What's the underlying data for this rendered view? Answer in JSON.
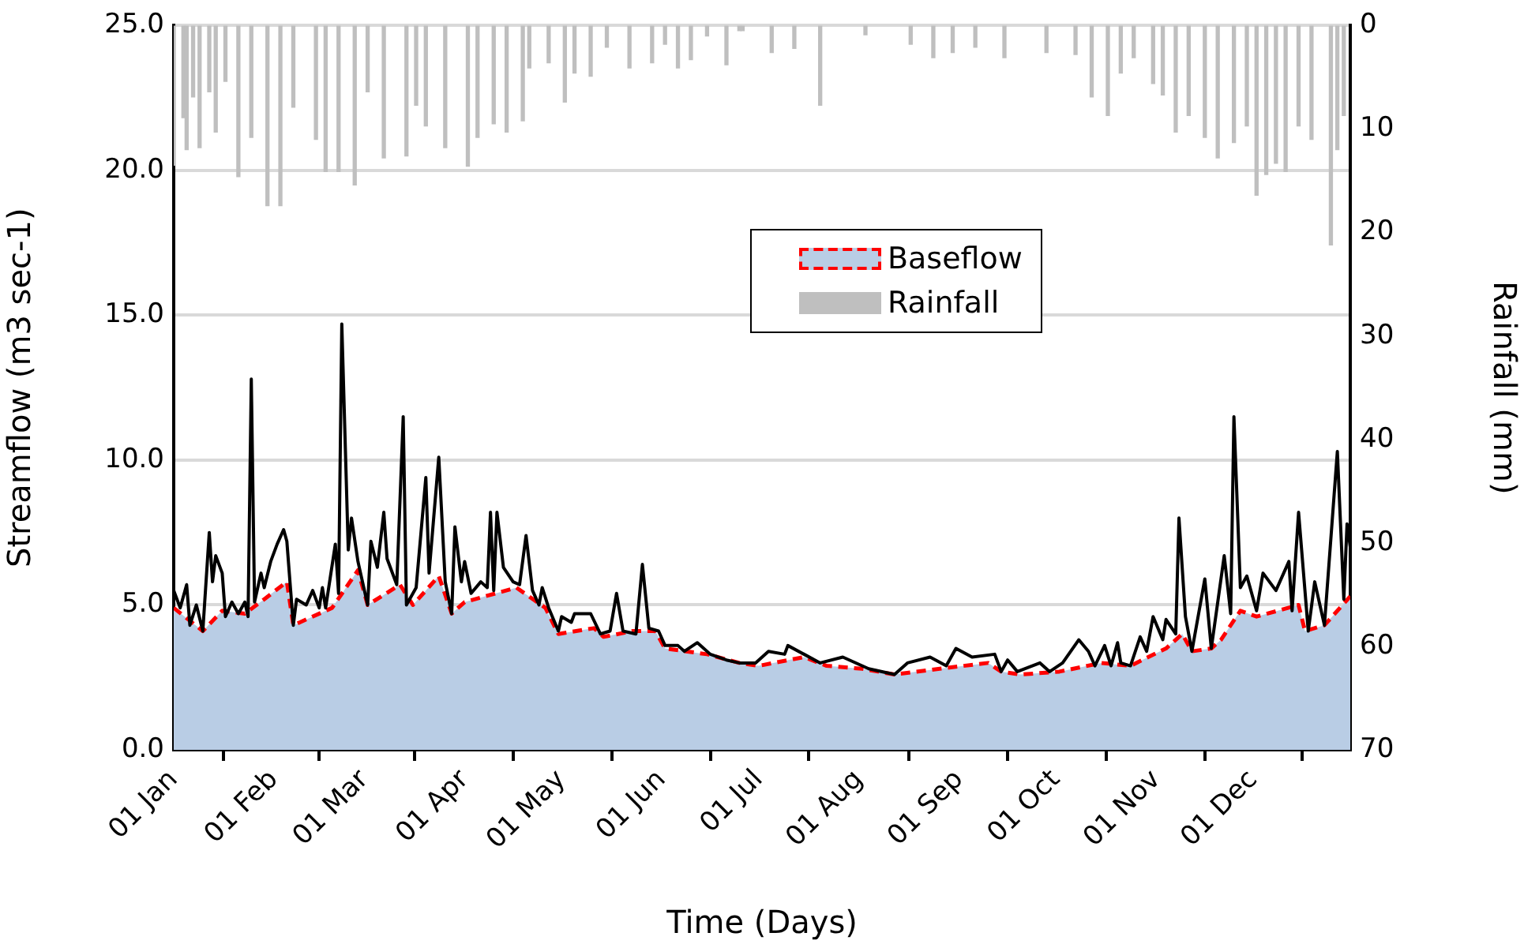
{
  "chart_data": {
    "type": "line",
    "xlabel": "Time (Days)",
    "ylabel": "Streamflow (m3 sec-1)",
    "y2label": "Rainfall (mm)",
    "xlim": [
      "--01-01",
      "--12-31"
    ],
    "xticks": [
      {
        "value": "--01-01",
        "label": "01 Jan"
      },
      {
        "value": "--02-01",
        "label": "01 Feb"
      },
      {
        "value": "--03-01",
        "label": "01 Mar"
      },
      {
        "value": "--04-01",
        "label": "01 Apr"
      },
      {
        "value": "--05-01",
        "label": "01 May"
      },
      {
        "value": "--06-01",
        "label": "01 Jun"
      },
      {
        "value": "--07-01",
        "label": "01 Jul"
      },
      {
        "value": "--08-01",
        "label": "01 Aug"
      },
      {
        "value": "--09-01",
        "label": "01 Sep"
      },
      {
        "value": "--10-01",
        "label": "01 Oct"
      },
      {
        "value": "--11-01",
        "label": "01 Nov"
      },
      {
        "value": "--12-01",
        "label": "01 Dec"
      }
    ],
    "ylim": [
      0,
      25
    ],
    "yticks": [
      {
        "value": 0,
        "label": "0.0"
      },
      {
        "value": 5,
        "label": "5.0"
      },
      {
        "value": 10,
        "label": "10.0"
      },
      {
        "value": 15,
        "label": "15.0"
      },
      {
        "value": 20,
        "label": "20.0"
      },
      {
        "value": 25,
        "label": "25.0"
      }
    ],
    "y2lim": [
      70,
      0
    ],
    "y2ticks": [
      0,
      10,
      20,
      30,
      40,
      50,
      60,
      70
    ],
    "grid": "y",
    "legend": "top right",
    "marker": "none",
    "series": [
      {
        "color": "#000000",
        "line_style": "solid",
        "x": [
          "--01-01",
          "--01-03",
          "--01-05",
          "--01-06",
          "--01-08",
          "--01-10",
          "--01-12",
          "--01-13",
          "--01-14",
          "--01-16",
          "--01-17",
          "--01-19",
          "--01-21",
          "--01-23",
          "--01-24",
          "--01-25",
          "--01-26",
          "--01-28",
          "--01-29",
          "--01-31",
          "--02-02",
          "--02-04",
          "--02-05",
          "--02-07",
          "--02-08",
          "--02-11",
          "--02-13",
          "--02-15",
          "--02-16",
          "--02-17",
          "--02-20",
          "--02-21",
          "--02-22",
          "--02-24",
          "--02-25",
          "--02-27",
          "--03-02",
          "--03-03",
          "--03-05",
          "--03-07",
          "--03-08",
          "--03-11",
          "--03-13",
          "--03-14",
          "--03-17",
          "--03-20",
          "--03-21",
          "--03-24",
          "--03-26",
          "--03-28",
          "--03-29",
          "--03-31",
          "--04-01",
          "--04-03",
          "--04-06",
          "--04-08",
          "--04-09",
          "--04-10",
          "--04-11",
          "--04-13",
          "--04-16",
          "--04-18",
          "--04-20",
          "--04-22",
          "--04-24",
          "--04-25",
          "--04-27",
          "--04-30",
          "--05-01",
          "--05-04",
          "--05-05",
          "--05-10",
          "--05-13",
          "--05-16",
          "--05-18",
          "--05-20",
          "--05-24",
          "--05-26",
          "--05-28",
          "--05-31",
          "--06-02",
          "--06-06",
          "--06-08",
          "--06-12",
          "--06-16",
          "--06-21",
          "--06-25",
          "--06-30",
          "--07-04",
          "--07-09",
          "--07-10",
          "--07-15",
          "--07-20",
          "--07-27",
          "--08-04",
          "--08-12",
          "--08-16",
          "--08-23",
          "--08-28",
          "--08-31",
          "--09-05",
          "--09-12",
          "--09-14",
          "--09-16",
          "--09-19",
          "--09-26",
          "--09-29",
          "--10-03",
          "--10-08",
          "--10-11",
          "--10-13",
          "--10-16",
          "--10-18",
          "--10-20",
          "--10-21",
          "--10-24",
          "--10-27",
          "--10-29",
          "--10-31",
          "--11-03",
          "--11-04",
          "--11-07",
          "--11-08",
          "--11-10",
          "--11-12",
          "--11-16",
          "--11-18",
          "--11-22",
          "--11-24",
          "--11-25",
          "--11-27",
          "--11-29",
          "--12-02",
          "--12-04",
          "--12-08",
          "--12-12",
          "--12-13",
          "--12-15",
          "--12-18",
          "--12-20",
          "--12-23",
          "--12-27",
          "--12-29",
          "--12-30",
          "--12-31"
        ],
        "values": [
          5.5,
          4.9,
          5.7,
          4.3,
          5.0,
          4.1,
          7.5,
          5.8,
          6.7,
          6.1,
          4.6,
          5.1,
          4.7,
          5.1,
          4.6,
          12.8,
          5.1,
          6.1,
          5.6,
          6.5,
          7.1,
          7.6,
          7.2,
          4.3,
          5.2,
          5.0,
          5.5,
          4.9,
          5.6,
          4.9,
          7.1,
          5.4,
          14.7,
          6.9,
          8.0,
          6.5,
          5.0,
          7.2,
          6.3,
          8.2,
          6.6,
          5.7,
          11.5,
          5.0,
          5.6,
          9.4,
          6.1,
          10.1,
          5.8,
          4.7,
          7.7,
          5.8,
          6.5,
          5.4,
          5.8,
          5.6,
          8.2,
          5.5,
          8.2,
          6.3,
          5.8,
          5.7,
          7.4,
          5.5,
          5.0,
          5.6,
          4.9,
          4.1,
          4.6,
          4.4,
          4.7,
          4.7,
          4.0,
          4.1,
          5.4,
          4.1,
          4.0,
          6.4,
          4.2,
          4.1,
          3.6,
          3.6,
          3.4,
          3.7,
          3.3,
          3.1,
          3.0,
          3.0,
          3.4,
          3.3,
          3.6,
          3.3,
          3.0,
          3.2,
          2.8,
          2.6,
          3.0,
          3.2,
          2.9,
          3.5,
          3.2,
          3.3,
          2.7,
          3.1,
          2.7,
          3.0,
          2.7,
          3.0,
          3.8,
          3.4,
          2.9,
          3.6,
          2.9,
          3.7,
          3.0,
          2.9,
          3.9,
          3.4,
          4.6,
          3.8,
          4.5,
          4.0,
          8.0,
          4.6,
          3.4,
          5.9,
          3.5,
          6.7,
          4.7,
          11.5,
          5.6,
          6.0,
          4.8,
          6.1,
          5.5,
          6.5,
          4.8,
          8.2,
          4.1,
          5.8,
          4.3,
          10.3,
          5.2,
          7.8,
          7.0
        ]
      },
      {
        "type": "area",
        "name": "Baseflow",
        "color": "#b9cde5",
        "x": [
          "--01-01",
          "--01-10",
          "--01-16",
          "--01-23",
          "--01-29",
          "--02-05",
          "--02-07",
          "--02-19",
          "--02-27",
          "--03-02",
          "--03-12",
          "--03-16",
          "--03-24",
          "--03-28",
          "--04-01",
          "--04-17",
          "--04-26",
          "--04-30",
          "--05-11",
          "--05-14",
          "--05-23",
          "--05-30",
          "--06-02",
          "--06-15",
          "--06-25",
          "--07-01",
          "--07-15",
          "--07-22",
          "--08-02",
          "--08-12",
          "--08-26",
          "--09-10",
          "--09-14",
          "--09-20",
          "--10-02",
          "--10-15",
          "--10-24",
          "--11-04",
          "--11-09",
          "--11-12",
          "--11-18",
          "--11-21",
          "--11-27",
          "--12-02",
          "--12-15",
          "--12-17",
          "--12-23",
          "--12-31"
        ],
        "values": [
          4.9,
          4.1,
          4.8,
          4.7,
          5.2,
          5.8,
          4.3,
          4.9,
          6.2,
          5.0,
          5.7,
          5.0,
          6.0,
          4.7,
          5.1,
          5.6,
          4.9,
          4.0,
          4.2,
          3.9,
          4.1,
          4.1,
          3.5,
          3.3,
          3.0,
          2.9,
          3.2,
          2.9,
          2.8,
          2.6,
          2.8,
          3.0,
          2.7,
          2.6,
          2.7,
          3.0,
          2.9,
          3.5,
          4.0,
          3.4,
          3.5,
          3.8,
          4.8,
          4.6,
          5.0,
          4.1,
          4.3,
          5.3
        ]
      },
      {
        "color": "#ff0000",
        "line_style": "dashed",
        "x": [
          "--01-01",
          "--01-10",
          "--01-16",
          "--01-23",
          "--01-29",
          "--02-05",
          "--02-07",
          "--02-19",
          "--02-27",
          "--03-02",
          "--03-12",
          "--03-16",
          "--03-24",
          "--03-28",
          "--04-01",
          "--04-17",
          "--04-26",
          "--04-30",
          "--05-11",
          "--05-14",
          "--05-23",
          "--05-30",
          "--06-02",
          "--06-15",
          "--06-25",
          "--07-01",
          "--07-15",
          "--07-22",
          "--08-02",
          "--08-12",
          "--08-26",
          "--09-10",
          "--09-14",
          "--09-20",
          "--10-02",
          "--10-15",
          "--10-24",
          "--11-04",
          "--11-09",
          "--11-12",
          "--11-18",
          "--11-21",
          "--11-27",
          "--12-02",
          "--12-15",
          "--12-17",
          "--12-23",
          "--12-31"
        ],
        "values": [
          4.9,
          4.1,
          4.8,
          4.7,
          5.2,
          5.8,
          4.3,
          4.9,
          6.2,
          5.0,
          5.7,
          5.0,
          6.0,
          4.7,
          5.1,
          5.6,
          4.9,
          4.0,
          4.2,
          3.9,
          4.1,
          4.1,
          3.5,
          3.3,
          3.0,
          2.9,
          3.2,
          2.9,
          2.8,
          2.6,
          2.8,
          3.0,
          2.7,
          2.6,
          2.7,
          3.0,
          2.9,
          3.5,
          4.0,
          3.4,
          3.5,
          3.8,
          4.8,
          4.6,
          5.0,
          4.1,
          4.3,
          5.3
        ]
      },
      {
        "type": "bar",
        "name": "Rainfall",
        "color": "#bfbfbf",
        "axis": "y2",
        "x": [
          "--01-01",
          "--01-04",
          "--01-05",
          "--01-07",
          "--01-09",
          "--01-12",
          "--01-14",
          "--01-17",
          "--01-21",
          "--01-25",
          "--01-30",
          "--02-03",
          "--02-07",
          "--02-14",
          "--02-17",
          "--02-21",
          "--02-26",
          "--03-02",
          "--03-07",
          "--03-14",
          "--03-17",
          "--03-20",
          "--03-26",
          "--04-02",
          "--04-05",
          "--04-10",
          "--04-14",
          "--04-19",
          "--04-21",
          "--04-27",
          "--05-02",
          "--05-05",
          "--05-10",
          "--05-15",
          "--05-22",
          "--05-29",
          "--06-02",
          "--06-06",
          "--06-10",
          "--06-15",
          "--06-21",
          "--06-25",
          "--06-26",
          "--07-05",
          "--07-12",
          "--07-20",
          "--08-03",
          "--08-17",
          "--08-24",
          "--08-30",
          "--09-06",
          "--09-15",
          "--09-28",
          "--10-07",
          "--10-12",
          "--10-17",
          "--10-21",
          "--10-25",
          "--10-31",
          "--11-03",
          "--11-07",
          "--11-11",
          "--11-16",
          "--11-20",
          "--11-25",
          "--11-29",
          "--12-02",
          "--12-05",
          "--12-08",
          "--12-11",
          "--12-15",
          "--12-19",
          "--12-25",
          "--12-27",
          "--12-29"
        ],
        "values": [
          13.5,
          8.9,
          12.0,
          6.9,
          11.8,
          6.4,
          10.3,
          5.4,
          14.6,
          10.8,
          17.4,
          17.4,
          7.9,
          11.0,
          14.1,
          14.1,
          15.4,
          6.4,
          12.8,
          12.6,
          7.7,
          9.7,
          11.8,
          13.6,
          10.8,
          9.5,
          10.3,
          9.2,
          4.1,
          3.6,
          7.4,
          4.6,
          4.9,
          2.1,
          4.1,
          3.6,
          1.8,
          4.1,
          3.3,
          1.0,
          3.8,
          0.5,
          0.5,
          2.6,
          2.2,
          7.7,
          0.9,
          1.8,
          3.1,
          2.6,
          2.1,
          3.1,
          2.6,
          2.8,
          6.9,
          8.7,
          4.6,
          3.1,
          5.6,
          6.7,
          10.3,
          8.7,
          10.8,
          12.8,
          11.3,
          9.7,
          16.4,
          14.4,
          13.3,
          14.1,
          9.7,
          11.0,
          21.2,
          12.0,
          8.7
        ]
      }
    ]
  }
}
